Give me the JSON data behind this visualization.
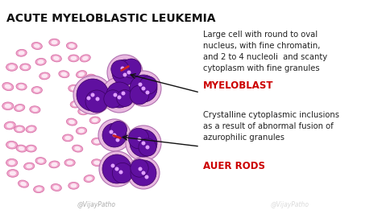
{
  "title": "ACUTE MYELOBLASTIC LEUKEMIA",
  "title_fontsize": 10,
  "bg_color": "#ffffff",
  "rbc_fill": "#f0a8cc",
  "rbc_edge": "#d870a8",
  "rbc_inner": "#ffffff",
  "cyto_color": "#e8b8e0",
  "cyto_edge": "#b070b0",
  "nucleus_color": "#6010a0",
  "nucleus_edge": "#3a0060",
  "nucleolus_color": "#c070e0",
  "auer_color": "#cc2020",
  "arrow_color": "#111111",
  "text_color": "#222222",
  "red_color": "#cc0000",
  "annotation1_text": "Large cell with round to oval\nnucleus, with fine chromatin,\nand 2 to 4 nucleoli  and scanty\ncytoplasm with fine granules",
  "annotation1_label": "MYELOBLAST",
  "annotation2_text": "Crystalline cytoplasmic inclusions\nas a result of abnormal fusion of\nazurophilic granules",
  "annotation2_label": "AUER RODS",
  "watermark_left": "@VijayPatho",
  "watermark_right": "@VijayPatho",
  "ann_fontsize": 7.2,
  "label_fontsize": 8.5,
  "rbcs": [
    [
      0.045,
      0.82,
      0.032,
      0.022,
      0
    ],
    [
      0.1,
      0.88,
      0.03,
      0.02,
      15
    ],
    [
      0.18,
      0.91,
      0.03,
      0.02,
      -5
    ],
    [
      0.27,
      0.9,
      0.03,
      0.02,
      10
    ],
    [
      0.36,
      0.89,
      0.03,
      0.02,
      0
    ],
    [
      0.44,
      0.85,
      0.03,
      0.02,
      -10
    ],
    [
      0.48,
      0.76,
      0.03,
      0.02,
      5
    ],
    [
      0.48,
      0.64,
      0.03,
      0.02,
      0
    ],
    [
      0.47,
      0.52,
      0.03,
      0.02,
      -5
    ],
    [
      0.46,
      0.4,
      0.03,
      0.02,
      10
    ],
    [
      0.45,
      0.28,
      0.03,
      0.02,
      0
    ],
    [
      0.42,
      0.17,
      0.03,
      0.02,
      -15
    ],
    [
      0.35,
      0.1,
      0.03,
      0.02,
      5
    ],
    [
      0.26,
      0.08,
      0.03,
      0.02,
      0
    ],
    [
      0.17,
      0.1,
      0.03,
      0.02,
      10
    ],
    [
      0.09,
      0.14,
      0.03,
      0.02,
      -5
    ],
    [
      0.04,
      0.22,
      0.032,
      0.022,
      0
    ],
    [
      0.02,
      0.33,
      0.032,
      0.022,
      15
    ],
    [
      0.02,
      0.44,
      0.032,
      0.022,
      0
    ],
    [
      0.03,
      0.55,
      0.032,
      0.022,
      -10
    ],
    [
      0.04,
      0.66,
      0.032,
      0.022,
      5
    ],
    [
      0.04,
      0.76,
      0.032,
      0.022,
      0
    ],
    [
      0.13,
      0.78,
      0.03,
      0.02,
      -5
    ],
    [
      0.09,
      0.68,
      0.03,
      0.02,
      10
    ],
    [
      0.08,
      0.57,
      0.03,
      0.02,
      0
    ],
    [
      0.08,
      0.45,
      0.03,
      0.02,
      -10
    ],
    [
      0.09,
      0.33,
      0.03,
      0.02,
      5
    ],
    [
      0.11,
      0.22,
      0.03,
      0.02,
      0
    ],
    [
      0.19,
      0.19,
      0.03,
      0.02,
      -5
    ],
    [
      0.27,
      0.17,
      0.03,
      0.02,
      10
    ],
    [
      0.36,
      0.17,
      0.03,
      0.02,
      0
    ],
    [
      0.4,
      0.26,
      0.03,
      0.02,
      -15
    ],
    [
      0.41,
      0.37,
      0.03,
      0.02,
      5
    ],
    [
      0.41,
      0.47,
      0.03,
      0.02,
      0
    ],
    [
      0.4,
      0.58,
      0.03,
      0.02,
      -5
    ],
    [
      0.38,
      0.68,
      0.03,
      0.02,
      10
    ],
    [
      0.34,
      0.76,
      0.03,
      0.02,
      0
    ],
    [
      0.26,
      0.77,
      0.03,
      0.02,
      -5
    ],
    [
      0.19,
      0.75,
      0.03,
      0.02,
      5
    ],
    [
      0.14,
      0.68,
      0.03,
      0.02,
      0
    ],
    [
      0.14,
      0.57,
      0.03,
      0.02,
      -10
    ],
    [
      0.16,
      0.46,
      0.03,
      0.02,
      5
    ],
    [
      0.17,
      0.35,
      0.03,
      0.02,
      0
    ],
    [
      0.21,
      0.27,
      0.03,
      0.02,
      -5
    ],
    [
      0.31,
      0.26,
      0.03,
      0.02,
      10
    ],
    [
      0.36,
      0.34,
      0.03,
      0.02,
      0
    ],
    [
      0.37,
      0.43,
      0.03,
      0.02,
      -5
    ],
    [
      0.35,
      0.53,
      0.03,
      0.02,
      10
    ],
    [
      0.33,
      0.62,
      0.03,
      0.02,
      0
    ]
  ]
}
